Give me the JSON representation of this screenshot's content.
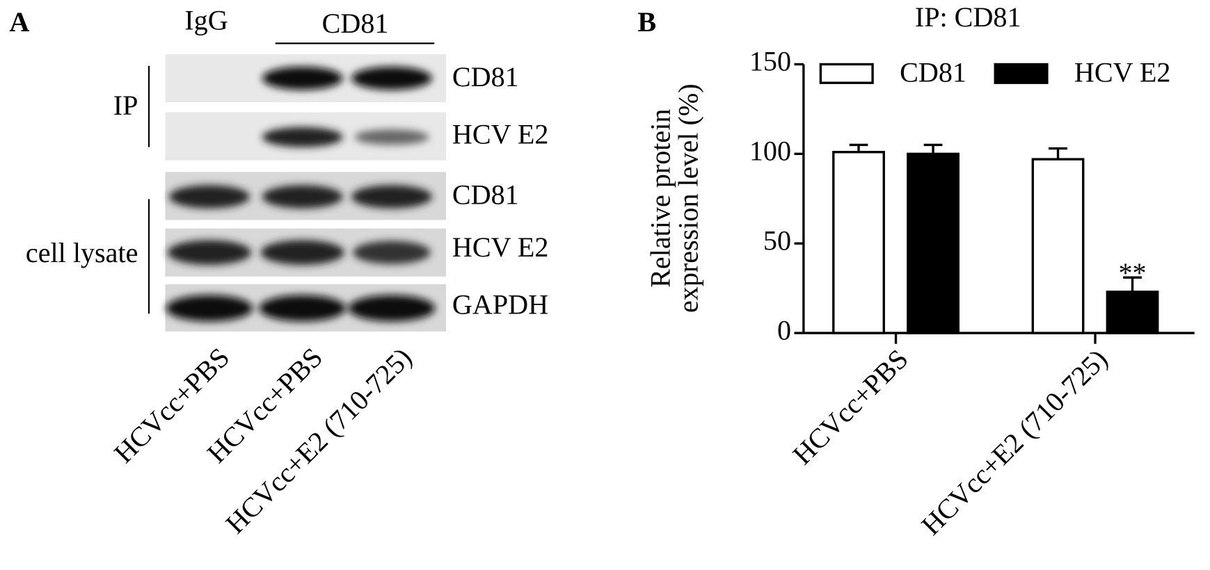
{
  "panel_a": {
    "label": "A",
    "lane_headers": [
      "IgG",
      "CD81"
    ],
    "groups": [
      "IP",
      "cell lysate"
    ],
    "rows": [
      "CD81",
      "HCV E2",
      "CD81",
      "HCV E2",
      "GAPDH"
    ],
    "lanes": [
      "HCVcc+PBS",
      "HCVcc+PBS",
      "HCVcc+E2 (710-725)"
    ]
  },
  "chart_data": {
    "type": "bar",
    "panel_label": "B",
    "title": "IP: CD81",
    "ylabel": [
      "Relative protein",
      "expression level (%)"
    ],
    "categories": [
      "HCVcc+PBS",
      "HCVcc+E2 (710-725)"
    ],
    "series": [
      {
        "name": "CD81",
        "color": "#ffffff",
        "values": [
          101,
          97
        ],
        "errors": [
          4,
          6
        ]
      },
      {
        "name": "HCV E2",
        "color": "#000000",
        "values": [
          100,
          23
        ],
        "errors": [
          5,
          8
        ],
        "annotations": [
          null,
          "**"
        ]
      }
    ],
    "ylim": [
      0,
      150
    ],
    "yticks": [
      0,
      50,
      100,
      150
    ],
    "legend": "top"
  }
}
